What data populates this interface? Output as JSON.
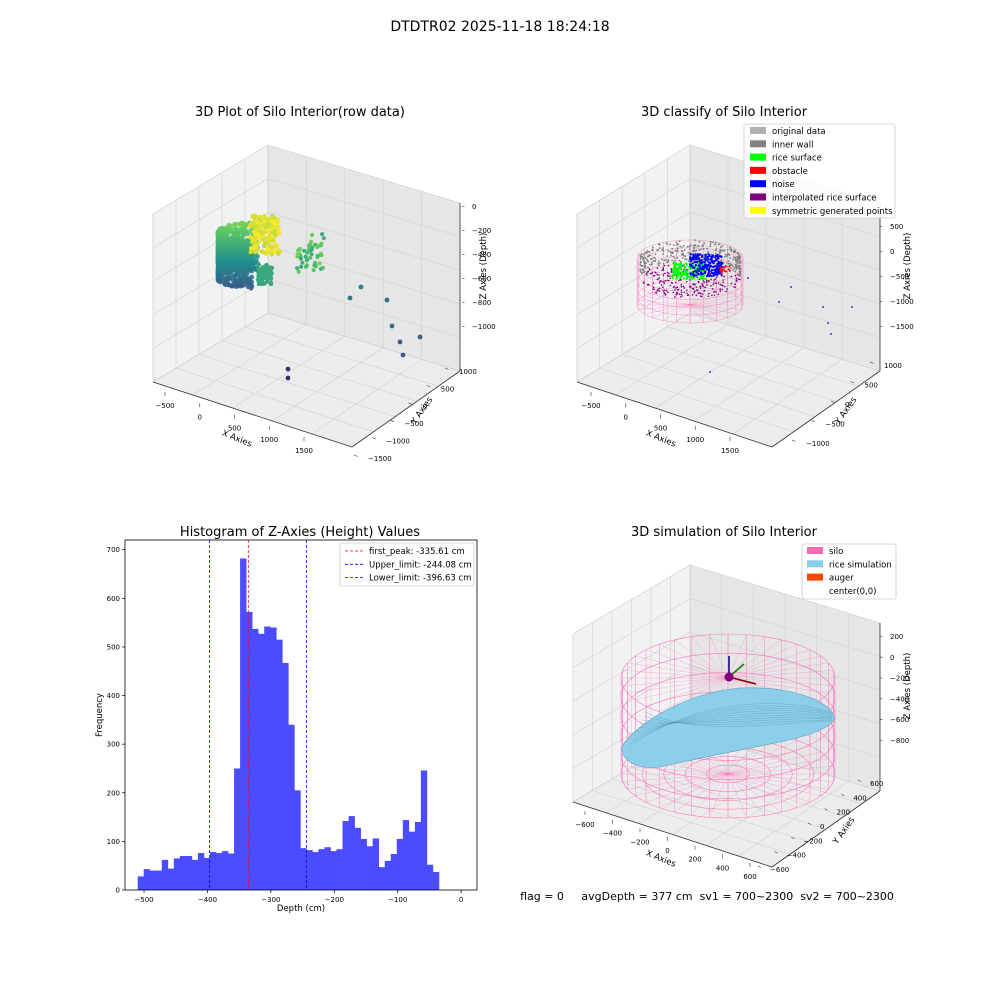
{
  "suptitle": "DTDTR02 2025-11-18 18:24:18",
  "status_line": "flag = 0     avgDepth = 377 cm  sv1 = 700~2300  sv2 = 700~2300",
  "chart_data": [
    {
      "type": "scatter",
      "subtype": "3d",
      "title": "3D Plot of Silo Interior(row data)",
      "xlabel": "X Axies",
      "ylabel": "Y Axies",
      "zlabel": "Z Axies (Depth)",
      "x_ticks": [
        "−500",
        "0",
        "500",
        "1000",
        "1500"
      ],
      "y_ticks": [
        "−1500",
        "−1000",
        "−500",
        "0",
        "500",
        "1000"
      ],
      "z_ticks": [
        "0",
        "−200",
        "−400",
        "−600",
        "−800",
        "−1000"
      ]
    },
    {
      "type": "scatter",
      "subtype": "3d",
      "title": "3D classify of Silo Interior",
      "xlabel": "X Axies",
      "ylabel": "Y Axies",
      "zlabel": "Z Axies (Depth)",
      "x_ticks": [
        "−500",
        "0",
        "500",
        "1000",
        "1500"
      ],
      "y_ticks": [
        "−1000",
        "−500",
        "0",
        "500",
        "1000"
      ],
      "z_ticks": [
        "500",
        "0",
        "−500",
        "−1000",
        "−1500"
      ],
      "legend_position": "top-right",
      "legend": [
        {
          "label": "original data",
          "color": "#b0b0b0"
        },
        {
          "label": "inner wall",
          "color": "#808080"
        },
        {
          "label": "rice surface",
          "color": "#00ff00"
        },
        {
          "label": "obstacle",
          "color": "#ff0000"
        },
        {
          "label": "noise",
          "color": "#0000ff"
        },
        {
          "label": "interpolated rice surface",
          "color": "#800080"
        },
        {
          "label": "symmetric generated points",
          "color": "#ffff00"
        }
      ]
    },
    {
      "type": "bar",
      "subtype": "histogram",
      "title": "Histogram of Z-Axies (Height) Values",
      "xlabel": "Depth (cm)",
      "ylabel": "Frequency",
      "xlim": [
        -530,
        25
      ],
      "ylim": [
        0,
        720
      ],
      "x_ticks": [
        -500,
        -400,
        -300,
        -200,
        -100,
        0
      ],
      "y_ticks": [
        0,
        100,
        200,
        300,
        400,
        500,
        600,
        700
      ],
      "bar_color": "#4b4bff",
      "bin_start": -510.0,
      "bin_width": 9.5,
      "values": [
        28,
        43,
        40,
        40,
        62,
        44,
        65,
        70,
        70,
        62,
        76,
        66,
        78,
        76,
        80,
        75,
        250,
        682,
        572,
        537,
        527,
        542,
        540,
        515,
        467,
        340,
        205,
        86,
        82,
        78,
        84,
        88,
        80,
        84,
        142,
        152,
        128,
        105,
        90,
        106,
        47,
        60,
        74,
        105,
        144,
        120,
        140,
        246,
        52,
        37
      ],
      "vlines": [
        {
          "label": "first_peak: -335.61 cm",
          "x": -335.61,
          "color": "#ff0000"
        },
        {
          "label": "Upper_limit: -244.08 cm",
          "x": -244.08,
          "color": "#0000ff"
        },
        {
          "label": "Lower_limit: -396.63 cm",
          "x": -396.63,
          "color": "#0000ff"
        }
      ],
      "legend_position": "top-right"
    },
    {
      "type": "scatter",
      "subtype": "3d-surface",
      "title": "3D simulation of Silo Interior",
      "xlabel": "X Axies",
      "ylabel": "Y Axies",
      "zlabel": "Z Axies (Depth)",
      "x_ticks": [
        "−600",
        "−400",
        "−200",
        "0",
        "200",
        "400",
        "600"
      ],
      "y_ticks": [
        "−600",
        "−400",
        "−200",
        "0",
        "200",
        "400",
        "600"
      ],
      "z_ticks": [
        "200",
        "0",
        "−200",
        "−400",
        "−600",
        "−800"
      ],
      "legend_position": "top-right",
      "legend": [
        {
          "label": "silo",
          "color": "#ff69b4"
        },
        {
          "label": "rice simulation",
          "color": "#87ceeb"
        },
        {
          "label": "auger",
          "color": "#ff4500"
        },
        {
          "label": "center(0,0)",
          "color": "#ffffff"
        }
      ]
    }
  ]
}
